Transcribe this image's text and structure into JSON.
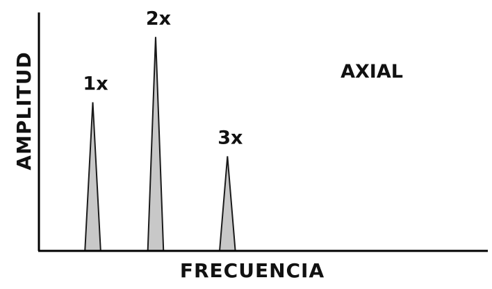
{
  "chart_data": {
    "type": "line",
    "title": "",
    "xlabel": "FRECUENCIA",
    "ylabel": "AMPLITUD",
    "annotation": "AXIAL",
    "grid": false,
    "legend": "none",
    "xlim": [
      0,
      10
    ],
    "ylim": [
      0,
      10
    ],
    "peaks": [
      {
        "label": "1x",
        "x": 1.2,
        "amplitude": 6.6,
        "width": 0.35
      },
      {
        "label": "2x",
        "x": 2.6,
        "amplitude": 9.5,
        "width": 0.35
      },
      {
        "label": "3x",
        "x": 4.2,
        "amplitude": 4.2,
        "width": 0.35
      }
    ],
    "colors": {
      "peak_fill": "#c8c8c8",
      "peak_stroke": "#1a1a1a",
      "axis": "#000000",
      "text": "#111111"
    }
  }
}
